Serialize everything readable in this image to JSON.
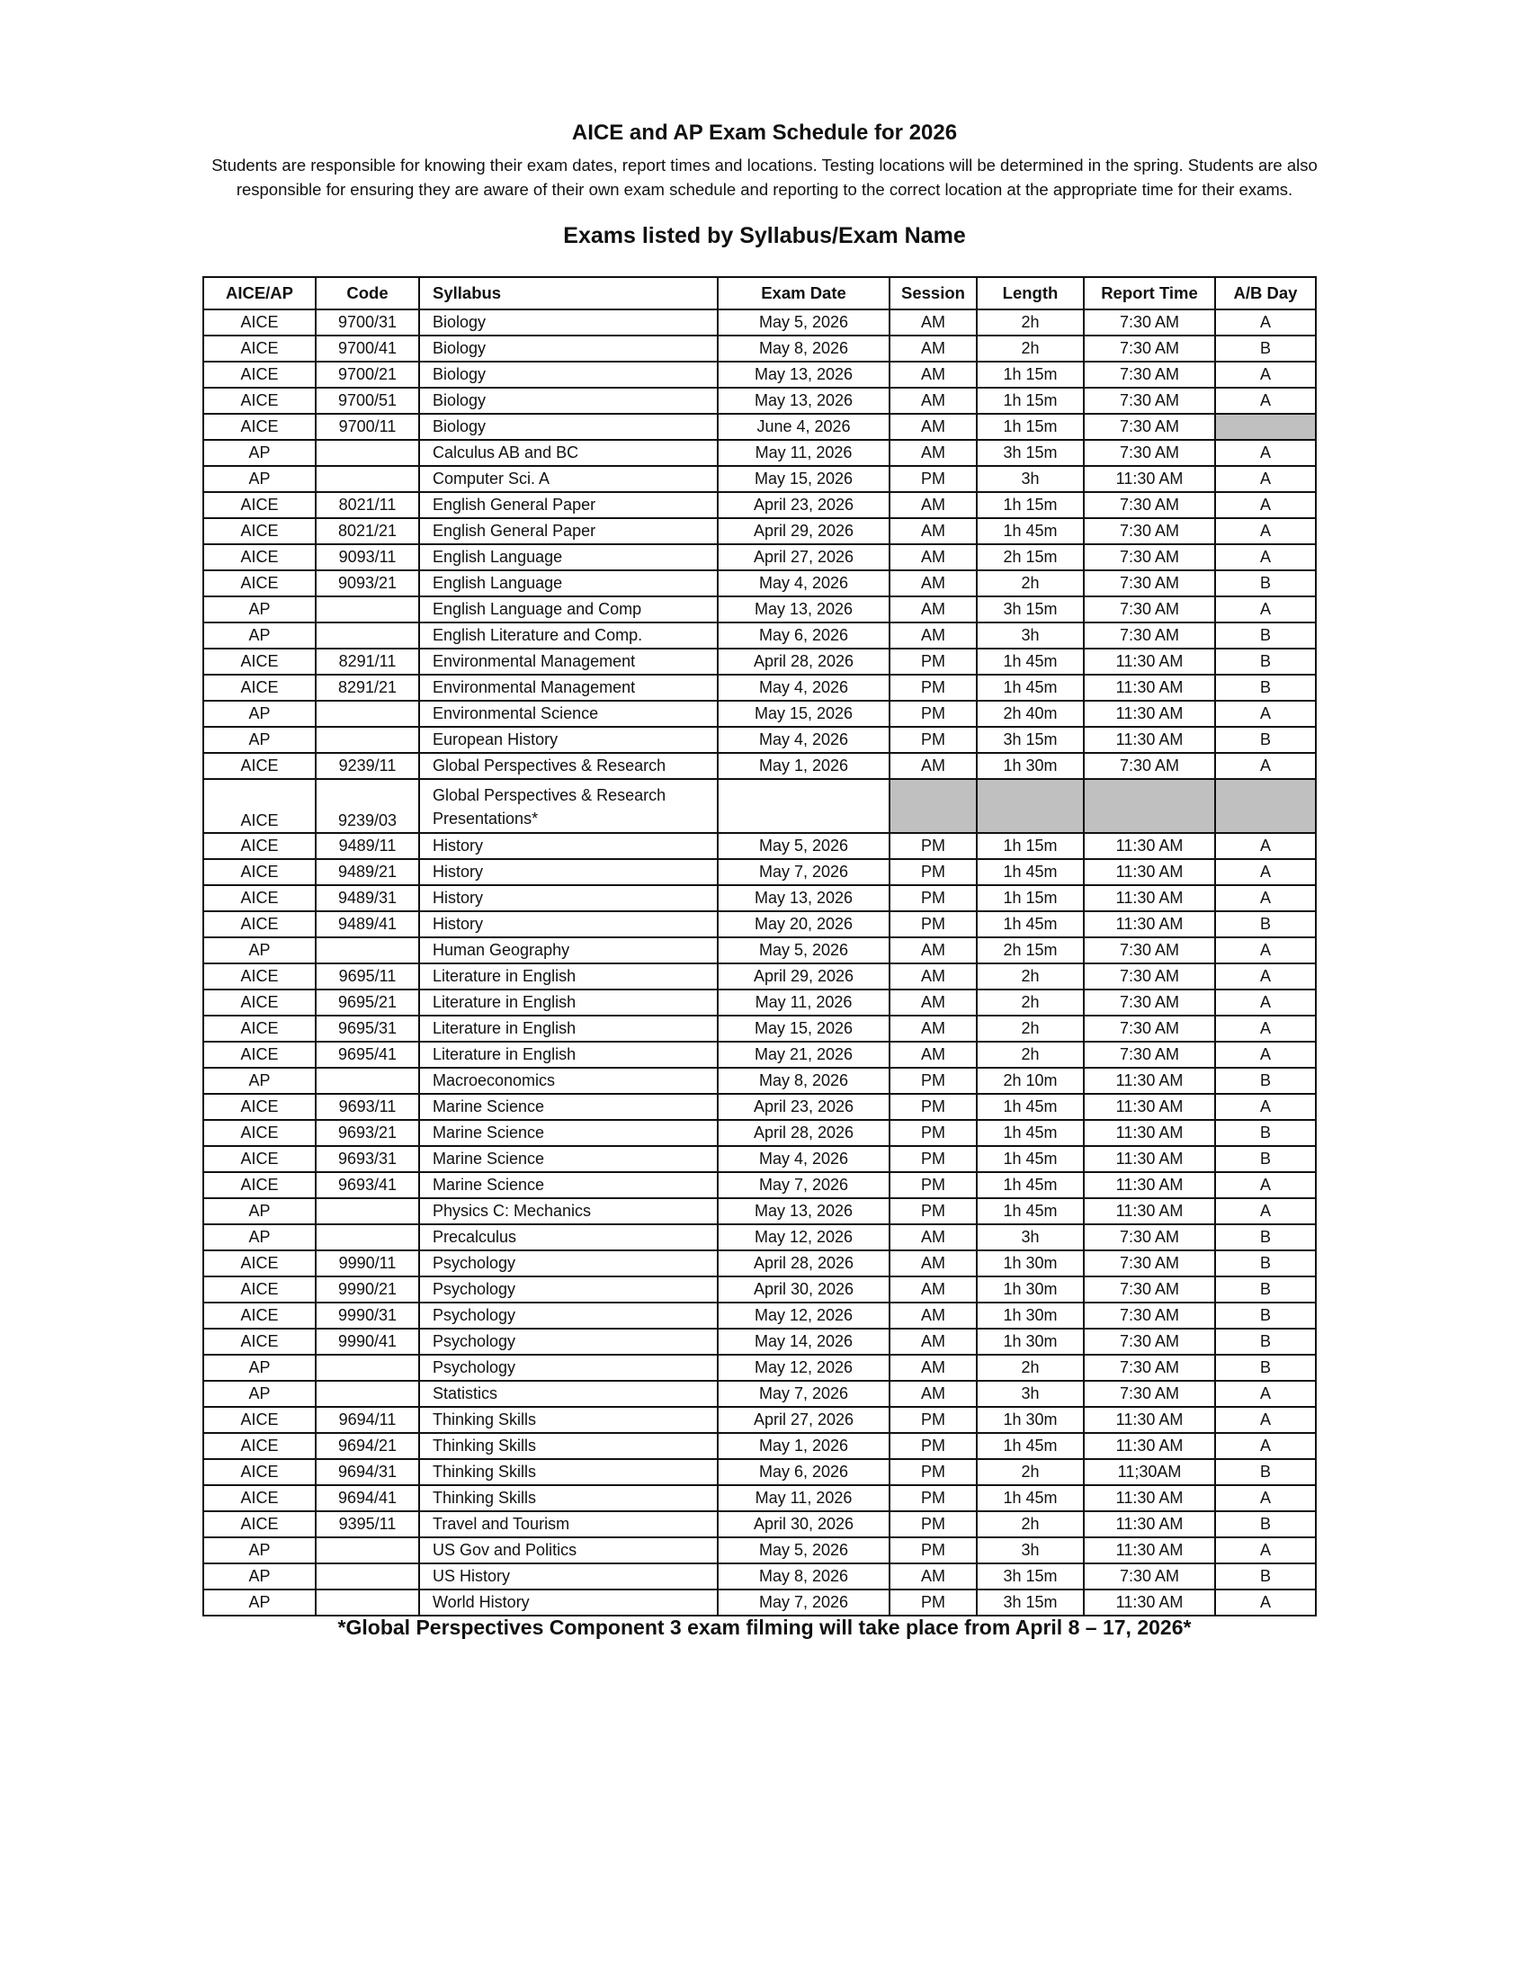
{
  "header": {
    "title": "AICE and AP Exam Schedule for 2026",
    "intro_line1": "Students are responsible for knowing their exam dates, report times and locations. Testing locations will be determined in the spring. Students are also",
    "intro_line2": "responsible for ensuring they are aware of their own exam schedule and reporting to the correct location at the appropriate time for their exams.",
    "subheading": "Exams listed by Syllabus/Exam Name"
  },
  "table": {
    "columns": [
      "AICE/AP",
      "Code",
      "Syllabus",
      "Exam Date",
      "Session",
      "Length",
      "Report Time",
      "A/B  Day"
    ],
    "shade_color": "#c0c0c0",
    "rows": [
      {
        "cells": [
          "AICE",
          "9700/31",
          "Biology",
          "May 5, 2026",
          "AM",
          "2h",
          "7:30 AM",
          "A"
        ]
      },
      {
        "cells": [
          "AICE",
          "9700/41",
          "Biology",
          "May 8, 2026",
          "AM",
          "2h",
          "7:30 AM",
          "B"
        ]
      },
      {
        "cells": [
          "AICE",
          "9700/21",
          "Biology",
          "May 13, 2026",
          "AM",
          "1h 15m",
          "7:30 AM",
          "A"
        ]
      },
      {
        "cells": [
          "AICE",
          "9700/51",
          "Biology",
          "May 13, 2026",
          "AM",
          "1h 15m",
          "7:30 AM",
          "A"
        ]
      },
      {
        "cells": [
          "AICE",
          "9700/11",
          "Biology",
          "June 4, 2026",
          "AM",
          "1h 15m",
          "7:30 AM",
          ""
        ],
        "shaded": [
          7
        ]
      },
      {
        "cells": [
          "AP",
          "",
          "Calculus AB and BC",
          "May 11, 2026",
          "AM",
          "3h 15m",
          "7:30 AM",
          "A"
        ]
      },
      {
        "cells": [
          "AP",
          "",
          "Computer Sci. A",
          "May 15, 2026",
          "PM",
          "3h",
          "11:30 AM",
          "A"
        ]
      },
      {
        "cells": [
          "AICE",
          "8021/11",
          "English General Paper",
          "April 23, 2026",
          "AM",
          "1h 15m",
          "7:30 AM",
          "A"
        ]
      },
      {
        "cells": [
          "AICE",
          "8021/21",
          "English General Paper",
          "April 29, 2026",
          "AM",
          "1h 45m",
          "7:30 AM",
          "A"
        ]
      },
      {
        "cells": [
          "AICE",
          "9093/11",
          "English Language",
          "April 27, 2026",
          "AM",
          "2h 15m",
          "7:30 AM",
          "A"
        ]
      },
      {
        "cells": [
          "AICE",
          "9093/21",
          "English Language",
          "May 4, 2026",
          "AM",
          "2h",
          "7:30 AM",
          "B"
        ]
      },
      {
        "cells": [
          "AP",
          "",
          "English Language and Comp",
          "May 13, 2026",
          "AM",
          "3h 15m",
          "7:30 AM",
          "A"
        ]
      },
      {
        "cells": [
          "AP",
          "",
          "English Literature and Comp.",
          "May 6, 2026",
          "AM",
          "3h",
          "7:30 AM",
          "B"
        ]
      },
      {
        "cells": [
          "AICE",
          "8291/11",
          "Environmental Management",
          "April 28, 2026",
          "PM",
          "1h 45m",
          "11:30 AM",
          "B"
        ]
      },
      {
        "cells": [
          "AICE",
          "8291/21",
          "Environmental Management",
          "May 4, 2026",
          "PM",
          "1h 45m",
          "11:30 AM",
          "B"
        ]
      },
      {
        "cells": [
          "AP",
          "",
          "Environmental Science",
          "May 15, 2026",
          "PM",
          "2h 40m",
          "11:30 AM",
          "A"
        ]
      },
      {
        "cells": [
          "AP",
          "",
          "European History",
          "May 4, 2026",
          "PM",
          "3h 15m",
          "11:30 AM",
          "B"
        ]
      },
      {
        "cells": [
          "AICE",
          "9239/11",
          "Global Perspectives & Research",
          "May 1, 2026",
          "AM",
          "1h 30m",
          "7:30 AM",
          "A"
        ]
      },
      {
        "cells": [
          "AICE",
          "9239/03",
          "Global Perspectives & Research Presentations*",
          "",
          "",
          "",
          "",
          ""
        ],
        "shaded": [
          4,
          5,
          6,
          7
        ],
        "tall": true
      },
      {
        "cells": [
          "AICE",
          "9489/11",
          "History",
          "May 5, 2026",
          "PM",
          "1h 15m",
          "11:30 AM",
          "A"
        ]
      },
      {
        "cells": [
          "AICE",
          "9489/21",
          "History",
          "May 7, 2026",
          "PM",
          "1h 45m",
          "11:30 AM",
          "A"
        ]
      },
      {
        "cells": [
          "AICE",
          "9489/31",
          "History",
          "May 13, 2026",
          "PM",
          "1h 15m",
          "11:30 AM",
          "A"
        ]
      },
      {
        "cells": [
          "AICE",
          "9489/41",
          "History",
          "May 20, 2026",
          "PM",
          "1h 45m",
          "11:30 AM",
          "B"
        ]
      },
      {
        "cells": [
          "AP",
          "",
          "Human Geography",
          "May 5, 2026",
          "AM",
          "2h 15m",
          "7:30 AM",
          "A"
        ]
      },
      {
        "cells": [
          "AICE",
          "9695/11",
          "Literature in English",
          "April 29, 2026",
          "AM",
          "2h",
          "7:30 AM",
          "A"
        ]
      },
      {
        "cells": [
          "AICE",
          "9695/21",
          "Literature in English",
          "May 11, 2026",
          "AM",
          "2h",
          "7:30 AM",
          "A"
        ]
      },
      {
        "cells": [
          "AICE",
          "9695/31",
          "Literature in English",
          "May 15, 2026",
          "AM",
          "2h",
          "7:30 AM",
          "A"
        ]
      },
      {
        "cells": [
          "AICE",
          "9695/41",
          "Literature in English",
          "May 21, 2026",
          "AM",
          "2h",
          "7:30 AM",
          "A"
        ]
      },
      {
        "cells": [
          "AP",
          "",
          "Macroeconomics",
          "May 8, 2026",
          "PM",
          "2h 10m",
          "11:30 AM",
          "B"
        ]
      },
      {
        "cells": [
          "AICE",
          "9693/11",
          "Marine Science",
          "April 23, 2026",
          "PM",
          "1h 45m",
          "11:30 AM",
          "A"
        ]
      },
      {
        "cells": [
          "AICE",
          "9693/21",
          "Marine Science",
          "April 28, 2026",
          "PM",
          "1h 45m",
          "11:30 AM",
          "B"
        ]
      },
      {
        "cells": [
          "AICE",
          "9693/31",
          "Marine Science",
          "May 4, 2026",
          "PM",
          "1h 45m",
          "11:30 AM",
          "B"
        ]
      },
      {
        "cells": [
          "AICE",
          "9693/41",
          "Marine Science",
          "May 7, 2026",
          "PM",
          "1h 45m",
          "11:30 AM",
          "A"
        ]
      },
      {
        "cells": [
          "AP",
          "",
          "Physics C: Mechanics",
          "May 13, 2026",
          "PM",
          "1h 45m",
          "11:30 AM",
          "A"
        ]
      },
      {
        "cells": [
          "AP",
          "",
          "Precalculus",
          "May 12, 2026",
          "AM",
          "3h",
          "7:30 AM",
          "B"
        ]
      },
      {
        "cells": [
          "AICE",
          "9990/11",
          "Psychology",
          "April 28, 2026",
          "AM",
          "1h 30m",
          "7:30 AM",
          "B"
        ]
      },
      {
        "cells": [
          "AICE",
          "9990/21",
          "Psychology",
          "April 30, 2026",
          "AM",
          "1h 30m",
          "7:30 AM",
          "B"
        ]
      },
      {
        "cells": [
          "AICE",
          "9990/31",
          "Psychology",
          "May 12, 2026",
          "AM",
          "1h 30m",
          "7:30 AM",
          "B"
        ]
      },
      {
        "cells": [
          "AICE",
          "9990/41",
          "Psychology",
          "May 14, 2026",
          "AM",
          "1h 30m",
          "7:30 AM",
          "B"
        ]
      },
      {
        "cells": [
          "AP",
          "",
          "Psychology",
          "May 12, 2026",
          "AM",
          "2h",
          "7:30 AM",
          "B"
        ]
      },
      {
        "cells": [
          "AP",
          "",
          "Statistics",
          "May 7, 2026",
          "AM",
          "3h",
          "7:30 AM",
          "A"
        ]
      },
      {
        "cells": [
          "AICE",
          "9694/11",
          "Thinking Skills",
          "April 27, 2026",
          "PM",
          "1h 30m",
          "11:30 AM",
          "A"
        ]
      },
      {
        "cells": [
          "AICE",
          "9694/21",
          "Thinking Skills",
          "May 1, 2026",
          "PM",
          "1h 45m",
          "11:30 AM",
          "A"
        ]
      },
      {
        "cells": [
          "AICE",
          "9694/31",
          "Thinking Skills",
          "May 6, 2026",
          "PM",
          "2h",
          "11;30AM",
          "B"
        ]
      },
      {
        "cells": [
          "AICE",
          "9694/41",
          "Thinking Skills",
          "May 11, 2026",
          "PM",
          "1h 45m",
          "11:30 AM",
          "A"
        ]
      },
      {
        "cells": [
          "AICE",
          "9395/11",
          "Travel and Tourism",
          "April 30, 2026",
          "PM",
          "2h",
          "11:30 AM",
          "B"
        ]
      },
      {
        "cells": [
          "AP",
          "",
          "US Gov and Politics",
          "May 5, 2026",
          "PM",
          "3h",
          "11:30 AM",
          "A"
        ]
      },
      {
        "cells": [
          "AP",
          "",
          "US History",
          "May 8, 2026",
          "AM",
          "3h 15m",
          "7:30 AM",
          "B"
        ]
      },
      {
        "cells": [
          "AP",
          "",
          "World History",
          "May 7, 2026",
          "PM",
          "3h 15m",
          "11:30 AM",
          "A"
        ]
      }
    ]
  },
  "footer": {
    "note": "*Global Perspectives Component 3 exam filming will take place from April 8 – 17, 2026*"
  }
}
